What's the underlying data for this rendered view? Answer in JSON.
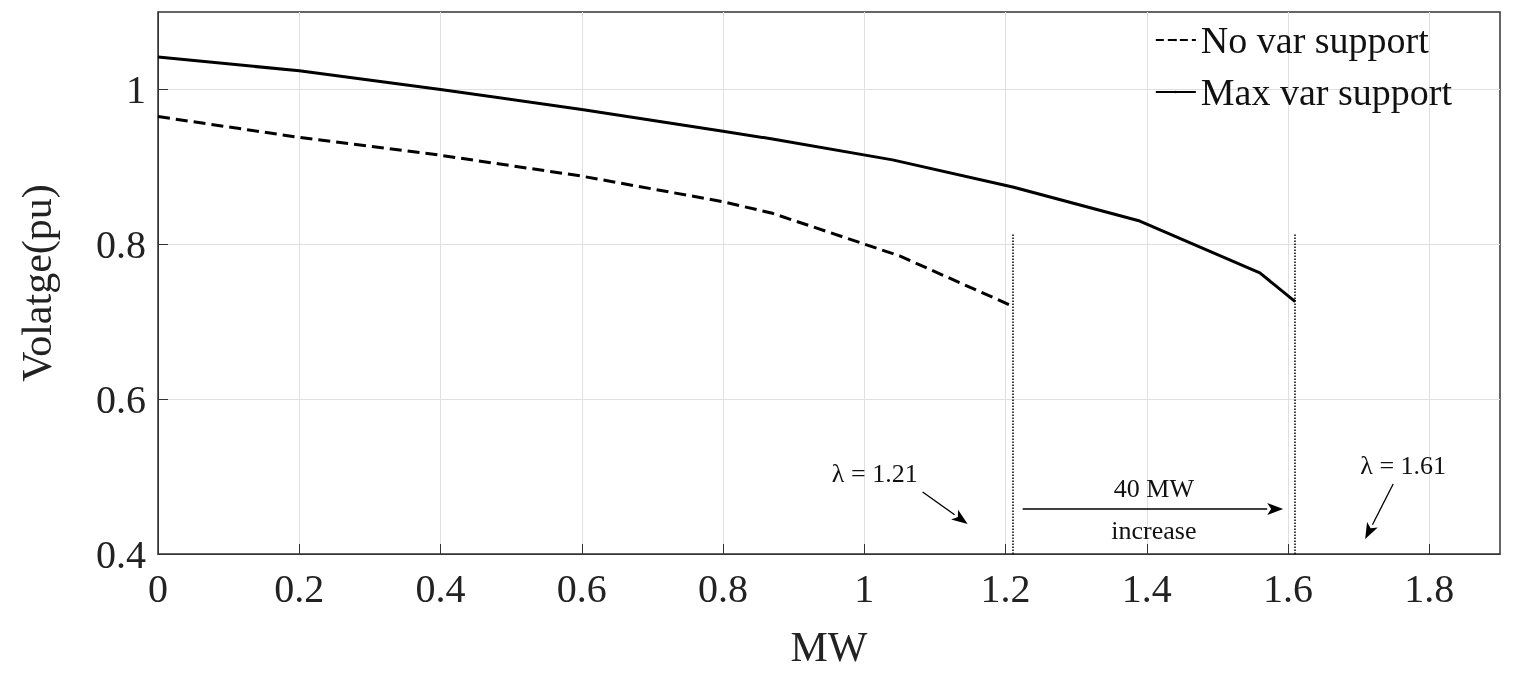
{
  "chart_data": {
    "type": "line",
    "xlabel": "MW",
    "ylabel": "Volatge(pu)",
    "xlim": [
      0,
      1.9
    ],
    "xticks": [
      0,
      0.2,
      0.4,
      0.6,
      0.8,
      1,
      1.2,
      1.4,
      1.6,
      1.8
    ],
    "ylim": [
      0.4,
      1.1
    ],
    "yticks": [
      0.4,
      0.6,
      0.8,
      1
    ],
    "grid": true,
    "legend": "top right",
    "marker": "none",
    "series": [
      {
        "name": "No var support",
        "color": "#000000",
        "line_style": "dashed",
        "x": [
          0,
          0.2,
          0.4,
          0.6,
          0.8,
          0.87,
          1.05,
          1.21
        ],
        "values": [
          0.965,
          0.938,
          0.915,
          0.888,
          0.855,
          0.84,
          0.785,
          0.72
        ]
      },
      {
        "name": "Max var support",
        "color": "#000000",
        "line_style": "solid",
        "x": [
          0,
          0.2,
          0.4,
          0.6,
          0.8,
          0.87,
          1.04,
          1.21,
          1.39,
          1.56,
          1.61
        ],
        "values": [
          1.042,
          1.024,
          1.0,
          0.974,
          0.946,
          0.936,
          0.909,
          0.874,
          0.83,
          0.763,
          0.726
        ]
      }
    ],
    "ref_lines": [
      {
        "axis": "x",
        "value": 1.21,
        "label": null,
        "color": "#000000",
        "line_style": "dotted"
      },
      {
        "axis": "x",
        "value": 1.61,
        "label": null,
        "color": "#000000",
        "line_style": "dotted"
      }
    ],
    "annotations": [
      "λ = 1.21",
      "40 MW\nincrease",
      "λ = 1.61"
    ]
  }
}
